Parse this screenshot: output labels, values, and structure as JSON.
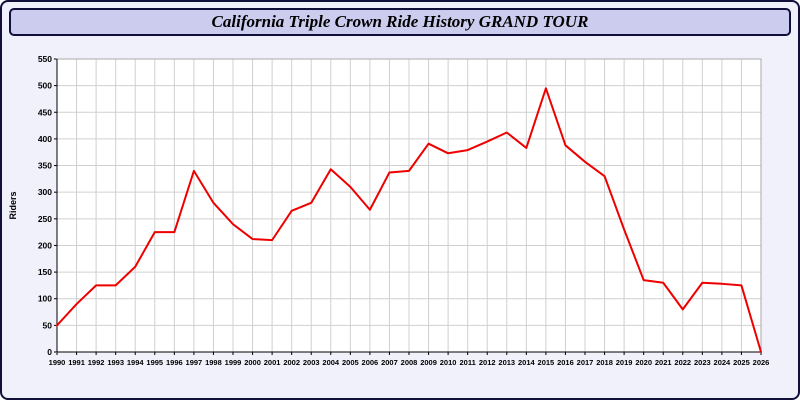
{
  "page": {
    "title": "California Triple Crown Ride History GRAND TOUR"
  },
  "colors": {
    "background": "#f0f1fb",
    "titlebar_bg": "#ccccee",
    "border": "#10103a",
    "plot_bg": "#ffffff",
    "grid": "#d0d0d0",
    "axis": "#000000",
    "line": "#ee0000",
    "text": "#000000"
  },
  "chart_data": {
    "type": "line",
    "title": "California Triple Crown Ride History GRAND TOUR",
    "xlabel": "",
    "ylabel": "Riders",
    "ylim": [
      0,
      550
    ],
    "ytick_step": 50,
    "grid": true,
    "legend": "none",
    "x": [
      1990,
      1991,
      1992,
      1993,
      1994,
      1995,
      1996,
      1997,
      1998,
      1999,
      2000,
      2001,
      2002,
      2003,
      2004,
      2005,
      2006,
      2007,
      2008,
      2009,
      2010,
      2011,
      2012,
      2013,
      2014,
      2015,
      2016,
      2017,
      2018,
      2019,
      2020,
      2021,
      2022,
      2023,
      2024,
      2025,
      2026
    ],
    "series": [
      {
        "name": "Riders",
        "color": "#ee0000",
        "values": [
          50,
          90,
          125,
          125,
          160,
          225,
          225,
          340,
          280,
          240,
          212,
          210,
          265,
          280,
          343,
          310,
          267,
          337,
          340,
          391,
          373,
          379,
          395,
          412,
          383,
          495,
          388,
          357,
          330,
          230,
          135,
          130,
          80,
          130,
          128,
          125,
          0
        ]
      }
    ]
  }
}
